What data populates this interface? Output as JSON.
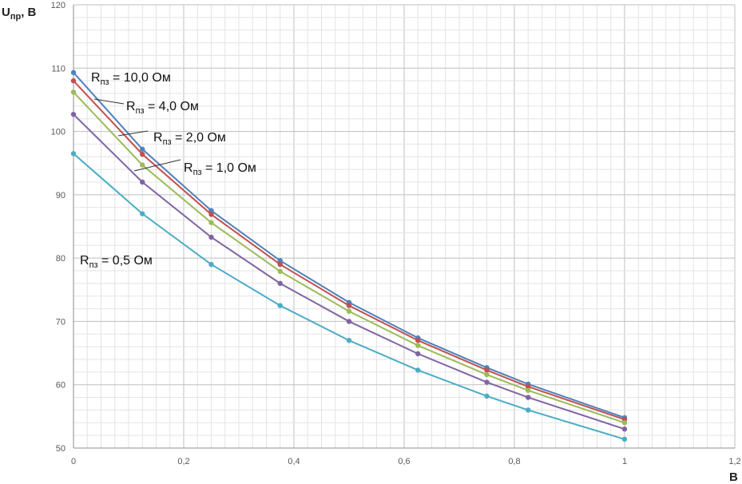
{
  "chart_data": {
    "type": "line",
    "xlabel": "В",
    "ylabel_main": "U",
    "ylabel_sub": "пр",
    "ylabel_tail": ", В",
    "xlim": [
      0,
      1.2
    ],
    "ylim": [
      50,
      120
    ],
    "x_ticks": [
      "0",
      "0,2",
      "0,4",
      "0,6",
      "0,8",
      "1",
      "1,2"
    ],
    "y_ticks": [
      "50",
      "60",
      "70",
      "80",
      "90",
      "100",
      "110",
      "120"
    ],
    "grid": true,
    "x": [
      0,
      0.125,
      0.25,
      0.375,
      0.5,
      0.625,
      0.75,
      0.825,
      1.0
    ],
    "series": [
      {
        "label_main": "R",
        "label_sub": "пз",
        "label_value": " = 10,0 Ом",
        "color": "#4f81bd",
        "values": [
          109.3,
          97.2,
          87.5,
          79.6,
          73.0,
          67.4,
          62.7,
          60.1,
          54.8
        ]
      },
      {
        "label_main": "R",
        "label_sub": "пз",
        "label_value": " = 4,0 Ом",
        "color": "#c0504d",
        "values": [
          108.0,
          96.4,
          86.9,
          79.0,
          72.5,
          67.0,
          62.3,
          59.7,
          54.5
        ]
      },
      {
        "label_main": "R",
        "label_sub": "пз",
        "label_value": " = 2,0 Ом",
        "color": "#9bbb59",
        "values": [
          106.2,
          94.7,
          85.6,
          77.9,
          71.6,
          66.2,
          61.6,
          59.1,
          54.0
        ]
      },
      {
        "label_main": "R",
        "label_sub": "пз",
        "label_value": " = 1,0 Ом",
        "color": "#8064a2",
        "values": [
          102.7,
          92.0,
          83.3,
          76.0,
          70.0,
          64.9,
          60.4,
          58.0,
          53.0
        ]
      },
      {
        "label_main": "R",
        "label_sub": "пз",
        "label_value": " = 0,5 Ом",
        "color": "#4bacc6",
        "values": [
          96.5,
          87.0,
          79.0,
          72.5,
          67.0,
          62.3,
          58.2,
          56.0,
          51.4
        ]
      }
    ]
  }
}
